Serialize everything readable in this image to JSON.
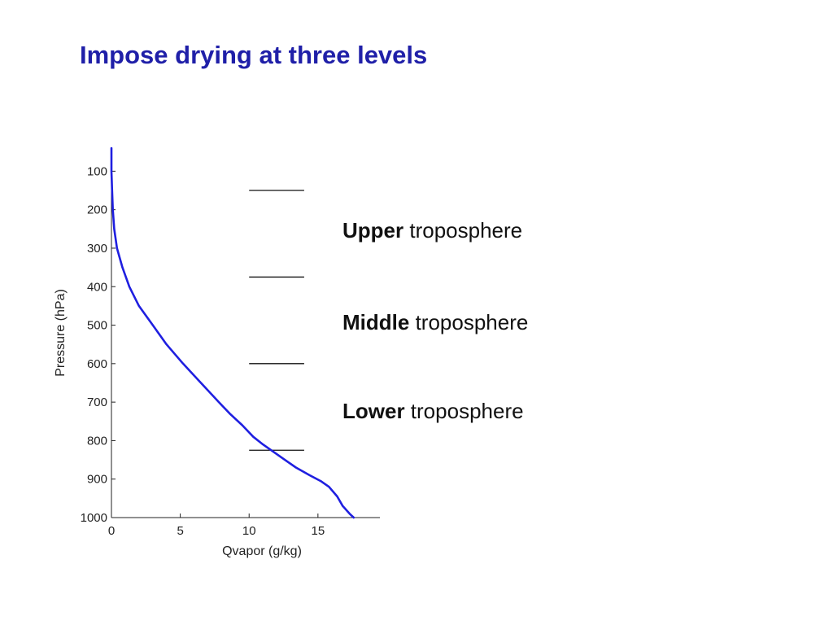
{
  "slide": {
    "title": "Impose drying at three levels",
    "title_color": "#1f1fa8"
  },
  "labels": [
    {
      "bold": "Upper",
      "rest": " troposphere"
    },
    {
      "bold": "Middle",
      "rest": " troposphere"
    },
    {
      "bold": "Lower",
      "rest": " troposphere"
    }
  ],
  "chart_data": {
    "type": "line",
    "xlabel": "Qvapor (g/kg)",
    "ylabel": "Pressure (hPa)",
    "xlim": [
      0,
      19.5
    ],
    "ylim": [
      1000,
      40
    ],
    "y_inverted": true,
    "x_ticks": [
      0,
      5,
      10,
      15
    ],
    "y_ticks": [
      100,
      200,
      300,
      400,
      500,
      600,
      700,
      800,
      900,
      1000
    ],
    "grid": false,
    "series": [
      {
        "color": "#1f1fe0",
        "x": [
          0.0,
          0.0,
          0.05,
          0.1,
          0.2,
          0.4,
          0.8,
          1.3,
          2.0,
          3.0,
          4.0,
          5.2,
          6.5,
          7.8,
          8.6,
          9.5,
          10.3,
          11.0,
          11.8,
          12.6,
          13.4,
          14.4,
          15.2,
          15.8,
          16.4,
          16.8,
          17.3,
          17.6
        ],
        "y": [
          40,
          100,
          150,
          200,
          250,
          300,
          350,
          400,
          450,
          500,
          550,
          600,
          650,
          700,
          730,
          760,
          790,
          810,
          830,
          850,
          870,
          890,
          905,
          920,
          945,
          970,
          990,
          1000
        ]
      }
    ],
    "annotations": {
      "boundary_pressures": [
        150,
        375,
        600,
        825
      ],
      "boundary_x_range": [
        10,
        14
      ]
    }
  }
}
